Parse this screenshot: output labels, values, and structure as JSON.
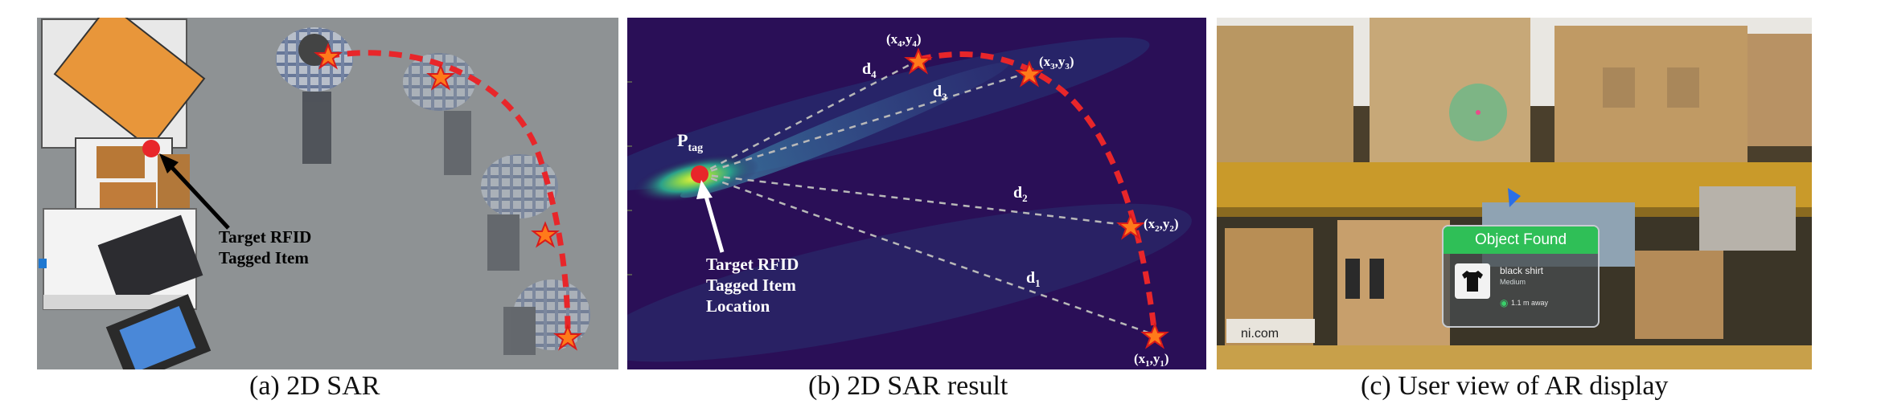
{
  "panel_a": {
    "caption": "(a) 2D SAR",
    "label_line1": "Target RFID",
    "label_line2": "Tagged Item",
    "colors": {
      "floor": "#8e9294",
      "path": "#e8262a",
      "star": "#ff7a1a"
    }
  },
  "panel_b": {
    "caption": "(b) 2D SAR result",
    "tag_label": "P",
    "tag_sub": "tag",
    "target_line1": "Target RFID",
    "target_line2": "Tagged Item",
    "target_line3": "Location",
    "points": [
      {
        "label": "(x",
        "s1": "4",
        "mid": ",y",
        "s2": "4",
        "end": ")"
      },
      {
        "label": "(x",
        "s1": "3",
        "mid": ",y",
        "s2": "3",
        "end": ")"
      },
      {
        "label": "(x",
        "s1": "2",
        "mid": ",y",
        "s2": "2",
        "end": ")"
      },
      {
        "label": "(x",
        "s1": "1",
        "mid": ",y",
        "s2": "1",
        "end": ")"
      }
    ],
    "distances": [
      {
        "d": "d",
        "sub": "4"
      },
      {
        "d": "d",
        "sub": "3"
      },
      {
        "d": "d",
        "sub": "2"
      },
      {
        "d": "d",
        "sub": "1"
      }
    ],
    "colors": {
      "background": "#2a0f57",
      "hotspot": "#d9f23a",
      "path": "#e8262a"
    }
  },
  "panel_c": {
    "caption": "(c) User view of AR display",
    "card_title": "Object Found",
    "item_name": "black shirt",
    "item_size": "Medium",
    "distance": "1.1 m away",
    "box_label": "ni.com",
    "colors": {
      "card_header": "#2fbf57",
      "shelf": "#c99a2a"
    }
  }
}
